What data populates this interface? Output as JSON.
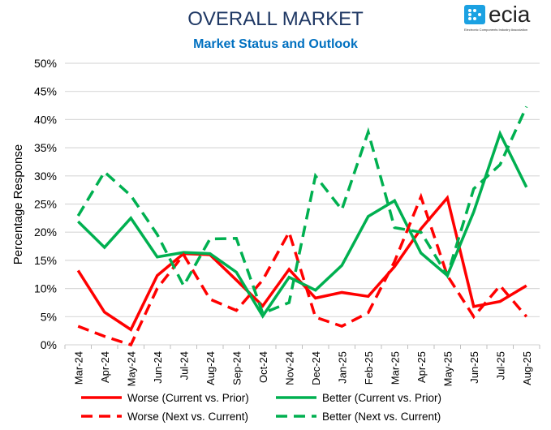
{
  "header": {
    "title": "OVERALL MARKET",
    "subtitle": "Market Status and Outlook"
  },
  "logo": {
    "text": "ecia",
    "tagline": "Electronic Components Industry Association",
    "color": "#1ba1e2"
  },
  "chart_data": {
    "type": "line",
    "title": "OVERALL MARKET",
    "subtitle": "Market Status and Outlook",
    "xlabel": "",
    "ylabel": "Percentage Response",
    "ylim": [
      0,
      50
    ],
    "yticks": [
      "0%",
      "5%",
      "10%",
      "15%",
      "20%",
      "25%",
      "30%",
      "35%",
      "40%",
      "45%",
      "50%"
    ],
    "grid": true,
    "legend_placement": "bottom",
    "categories": [
      "Mar-24",
      "Apr-24",
      "May-24",
      "Jun-24",
      "Jul-24",
      "Aug-24",
      "Sep-24",
      "Oct-24",
      "Nov-24",
      "Dec-24",
      "Jan-25",
      "Feb-25",
      "Mar-25",
      "Apr-25",
      "May-25",
      "Jun-25",
      "Jul-25",
      "Aug-25"
    ],
    "series": [
      {
        "name": "Worse (Current vs. Prior)",
        "color": "#ff0000",
        "dash": false,
        "values": [
          13.2,
          5.8,
          2.7,
          12.3,
          16.2,
          16.0,
          11.5,
          6.9,
          13.4,
          8.3,
          9.3,
          8.6,
          13.9,
          20.6,
          26.1,
          6.8,
          7.7,
          10.5
        ]
      },
      {
        "name": "Better (Current vs. Prior)",
        "color": "#00b050",
        "dash": false,
        "values": [
          21.9,
          17.3,
          22.5,
          15.6,
          16.4,
          16.2,
          12.9,
          5.1,
          12.0,
          9.7,
          14.1,
          22.8,
          25.6,
          16.3,
          12.3,
          23.6,
          37.5,
          28.0
        ]
      },
      {
        "name": "Worse (Next vs. Current)",
        "color": "#ff0000",
        "dash": true,
        "values": [
          3.3,
          1.5,
          0.0,
          10.0,
          16.0,
          8.1,
          6.1,
          11.5,
          20.0,
          4.9,
          3.3,
          5.7,
          14.8,
          26.3,
          12.3,
          5.0,
          10.5,
          5.0
        ]
      },
      {
        "name": "Better (Next vs. Current)",
        "color": "#00b050",
        "dash": true,
        "values": [
          22.9,
          30.7,
          26.5,
          19.6,
          10.5,
          18.8,
          18.9,
          5.6,
          7.5,
          30.0,
          24.0,
          37.8,
          20.8,
          20.0,
          12.3,
          27.7,
          32.0,
          42.3
        ]
      }
    ]
  }
}
